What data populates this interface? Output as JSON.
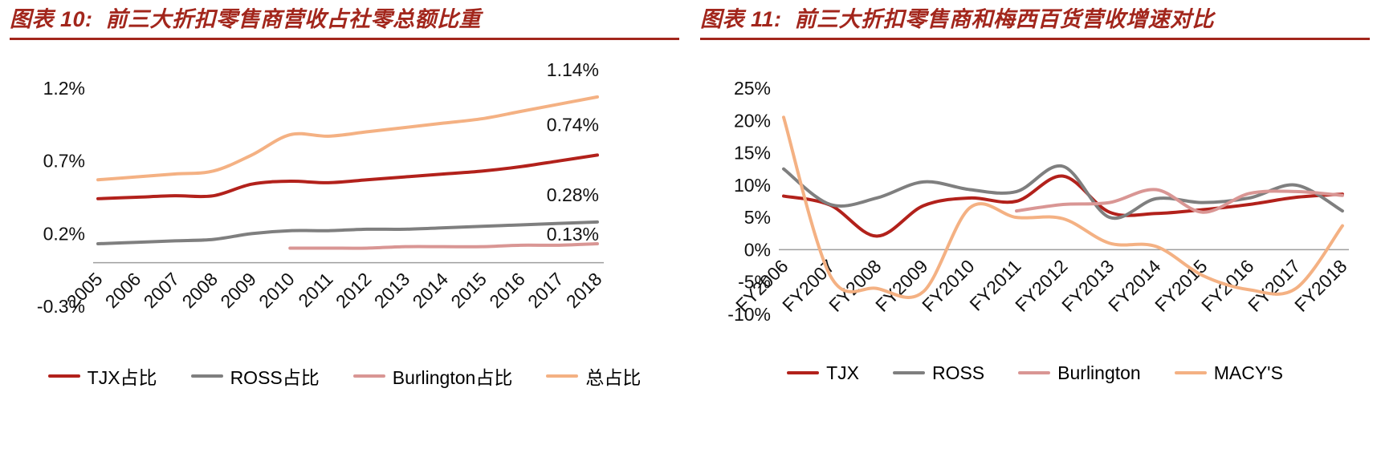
{
  "accent_color": "#A2261C",
  "charts": [
    {
      "title": "图表 10:  前三大折扣零售商营收占社零总额比重",
      "chart_data": {
        "type": "line",
        "title": "前三大折扣零售商营收占社零总额比重",
        "grid": false,
        "legend_position": "bottom",
        "categories": [
          "2005",
          "2006",
          "2007",
          "2008",
          "2009",
          "2010",
          "2011",
          "2012",
          "2013",
          "2014",
          "2015",
          "2016",
          "2017",
          "2018"
        ],
        "ylim": [
          -0.3,
          1.2
        ],
        "y_ticks": [
          {
            "label": "1.2%",
            "value": 1.2
          },
          {
            "label": "0.7%",
            "value": 0.7
          },
          {
            "label": "0.2%",
            "value": 0.2
          },
          {
            "label": "-0.3%",
            "value": -0.3
          }
        ],
        "series": [
          {
            "name": "TJX占比",
            "color": "#B2211B",
            "values": [
              0.44,
              0.45,
              0.46,
              0.46,
              0.54,
              0.56,
              0.55,
              0.57,
              0.59,
              0.61,
              0.63,
              0.66,
              0.7,
              0.74
            ]
          },
          {
            "name": "ROSS占比",
            "color": "#7F7F7F",
            "values": [
              0.13,
              0.14,
              0.15,
              0.16,
              0.2,
              0.22,
              0.22,
              0.23,
              0.23,
              0.24,
              0.25,
              0.26,
              0.27,
              0.28
            ]
          },
          {
            "name": "Burlington占比",
            "color": "#D99694",
            "values": [
              null,
              null,
              null,
              null,
              null,
              0.1,
              0.1,
              0.1,
              0.11,
              0.11,
              0.11,
              0.12,
              0.12,
              0.13
            ]
          },
          {
            "name": "总占比",
            "color": "#F4B183",
            "values": [
              0.57,
              0.59,
              0.61,
              0.63,
              0.74,
              0.88,
              0.87,
              0.9,
              0.93,
              0.96,
              0.99,
              1.04,
              1.09,
              1.14
            ]
          }
        ],
        "end_labels": [
          {
            "text": "1.14%",
            "value": 1.14,
            "dy": -26
          },
          {
            "text": "0.74%",
            "value": 0.74,
            "dy": -30
          },
          {
            "text": "0.28%",
            "value": 0.28,
            "dy": -26
          },
          {
            "text": "0.13%",
            "value": 0.13,
            "dy": -4
          }
        ]
      }
    },
    {
      "title": "图表 11:  前三大折扣零售商和梅西百货营收增速对比",
      "chart_data": {
        "type": "line",
        "title": "前三大折扣零售商和梅西百货营收增速对比",
        "grid": false,
        "legend_position": "bottom",
        "categories": [
          "FY2006",
          "FY2007",
          "FY2008",
          "FY2009",
          "FY2010",
          "FY2011",
          "FY2012",
          "FY2013",
          "FY2014",
          "FY2015",
          "FY2016",
          "FY2017",
          "FY2018"
        ],
        "ylim": [
          -10,
          25
        ],
        "y_ticks": [
          {
            "label": "25%",
            "value": 25
          },
          {
            "label": "20%",
            "value": 20
          },
          {
            "label": "15%",
            "value": 15
          },
          {
            "label": "10%",
            "value": 10
          },
          {
            "label": "5%",
            "value": 5
          },
          {
            "label": "0%",
            "value": 0
          },
          {
            "label": "-5%",
            "value": -5
          },
          {
            "label": "-10%",
            "value": -10
          }
        ],
        "series": [
          {
            "name": "TJX",
            "color": "#B2211B",
            "values": [
              8.3,
              6.9,
              2.1,
              6.8,
              8.0,
              7.5,
              11.4,
              5.8,
              5.6,
              6.2,
              7.0,
              8.1,
              8.6
            ]
          },
          {
            "name": "ROSS",
            "color": "#7F7F7F",
            "values": [
              12.5,
              7.0,
              8.0,
              10.5,
              9.3,
              9.0,
              12.9,
              5.0,
              7.9,
              7.3,
              8.0,
              10.0,
              6.0
            ]
          },
          {
            "name": "Burlington",
            "color": "#D99694",
            "values": [
              null,
              null,
              null,
              null,
              null,
              6.0,
              7.0,
              7.3,
              9.3,
              5.8,
              8.7,
              9.0,
              8.4
            ]
          },
          {
            "name": "MACY'S",
            "color": "#F4B183",
            "values": [
              20.5,
              -4.0,
              -6.0,
              -6.5,
              6.5,
              5.0,
              4.8,
              1.0,
              0.5,
              -4.0,
              -6.2,
              -6.0,
              3.7
            ]
          }
        ],
        "end_labels": []
      }
    }
  ]
}
